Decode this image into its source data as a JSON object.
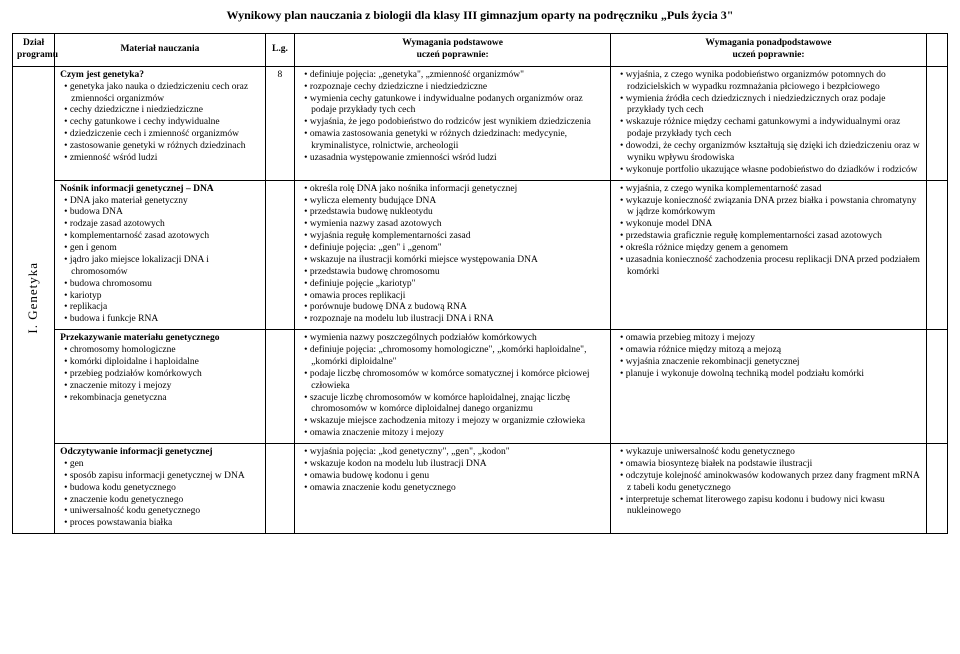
{
  "title": "Wynikowy plan nauczania z biologii dla klasy III gimnazjum oparty na podręczniku „Puls życia 3\"",
  "headers": {
    "dzial": "Dział programu",
    "material": "Materiał nauczania",
    "lg": "L.g.",
    "podst_top": "Wymagania podstawowe",
    "podst_sub": "uczeń poprawnie:",
    "ponad_top": "Wymagania ponadpodstawowe",
    "ponad_sub": "uczeń poprawnie:"
  },
  "dzial_label": "I. Genetyka",
  "rows": [
    {
      "material_title": "Czym jest genetyka?",
      "material_items": [
        "genetyka jako nauka o dziedziczeniu cech oraz zmienności organizmów",
        "cechy dziedziczne i niedziedziczne",
        "cechy gatunkowe i cechy indywidualne",
        "dziedziczenie cech i zmienność organizmów",
        "zastosowanie genetyki w różnych dziedzinach",
        "zmienność wśród ludzi"
      ],
      "lg": "8",
      "podst": [
        "definiuje pojęcia: „genetyka\", „zmienność organizmów\"",
        "rozpoznaje cechy dziedziczne i niedziedziczne",
        "wymienia cechy gatunkowe i indywidualne podanych organizmów oraz podaje przykłady tych cech",
        "wyjaśnia, że jego podobieństwo do rodziców jest wynikiem dziedziczenia",
        "omawia zastosowania genetyki w różnych dziedzinach: medycynie, kryminalistyce, rolnictwie, archeologii",
        "uzasadnia występowanie zmienności wśród ludzi"
      ],
      "ponad": [
        "wyjaśnia, z czego wynika podobieństwo organizmów potomnych do rodzicielskich w wypadku rozmnażania płciowego i bezpłciowego",
        "wymienia źródła cech dziedzicznych i niedziedzicznych oraz podaje przykłady tych cech",
        "wskazuje różnice między cechami gatunkowymi a indywidualnymi oraz podaje przykłady tych cech",
        "dowodzi, że cechy organizmów kształtują się dzięki ich dziedziczeniu oraz w wyniku wpływu środowiska",
        "wykonuje portfolio ukazujące własne podobieństwo do dziadków i rodziców"
      ]
    },
    {
      "material_title": "Nośnik informacji genetycznej – DNA",
      "material_items": [
        "DNA jako materiał genetyczny",
        "budowa DNA",
        "rodzaje zasad azotowych",
        "komplementarność zasad azotowych",
        "gen i genom",
        "jądro jako miejsce lokalizacji DNA i chromosomów",
        "budowa chromosomu",
        "kariotyp",
        "replikacja",
        "budowa i funkcje RNA"
      ],
      "lg": "",
      "podst": [
        "określa rolę DNA jako nośnika informacji genetycznej",
        "wylicza elementy budujące DNA",
        "przedstawia budowę nukleotydu",
        "wymienia nazwy zasad azotowych",
        "wyjaśnia regułę komplementarności zasad",
        "definiuje pojęcia: „gen\" i „genom\"",
        "wskazuje na ilustracji komórki miejsce występowania DNA",
        "przedstawia budowę chromosomu",
        "definiuje pojęcie „kariotyp\"",
        "omawia proces replikacji",
        "porównuje budowę DNA z budową RNA",
        "rozpoznaje na modelu lub ilustracji DNA i RNA"
      ],
      "ponad": [
        "wyjaśnia, z czego wynika komplementarność zasad",
        "wykazuje konieczność związania DNA przez białka i powstania chromatyny w jądrze komórkowym",
        "wykonuje model DNA",
        "przedstawia graficznie regułę komplementarności zasad azotowych",
        "określa różnice między genem a genomem",
        "uzasadnia konieczność zachodzenia procesu replikacji DNA przed podziałem komórki"
      ]
    },
    {
      "material_title": "Przekazywanie materiału genetycznego",
      "material_items": [
        "chromosomy homologiczne",
        "komórki diploidalne i haploidalne",
        "przebieg podziałów komórkowych",
        "znaczenie mitozy i mejozy",
        "rekombinacja genetyczna"
      ],
      "lg": "",
      "podst": [
        "wymienia nazwy poszczególnych podziałów komórkowych",
        "definiuje pojęcia: „chromosomy homologiczne\", „komórki haploidalne\", „komórki diploidalne\"",
        "podaje liczbę chromosomów w komórce somatycznej i komórce płciowej człowieka",
        "szacuje liczbę chromosomów w komórce haploidalnej, znając liczbę chromosomów w komórce diploidalnej danego organizmu",
        "wskazuje miejsce zachodzenia mitozy i mejozy w organizmie człowieka",
        "omawia znaczenie mitozy i mejozy"
      ],
      "ponad": [
        "omawia przebieg mitozy i mejozy",
        "omawia różnice między mitozą a mejozą",
        "wyjaśnia znaczenie rekombinacji genetycznej",
        "planuje i wykonuje dowolną techniką model podziału komórki"
      ]
    },
    {
      "material_title": "Odczytywanie informacji genetycznej",
      "material_items": [
        "gen",
        "sposób zapisu informacji genetycznej w DNA",
        "budowa kodu genetycznego",
        "znaczenie kodu genetycznego",
        "uniwersalność kodu genetycznego",
        "proces powstawania białka"
      ],
      "lg": "",
      "podst": [
        "wyjaśnia pojęcia: „kod genetyczny\", „gen\", „kodon\"",
        "wskazuje kodon na modelu lub ilustracji DNA",
        "omawia budowę kodonu i genu",
        "omawia znaczenie kodu genetycznego"
      ],
      "ponad": [
        "wykazuje uniwersalność kodu genetycznego",
        "omawia biosyntezę białek na podstawie ilustracji",
        "odczytuje kolejność aminokwasów kodowanych przez dany fragment mRNA z tabeli kodu genetycznego",
        "interpretuje schemat literowego zapisu kodonu i budowy nici kwasu nukleinowego"
      ]
    }
  ]
}
